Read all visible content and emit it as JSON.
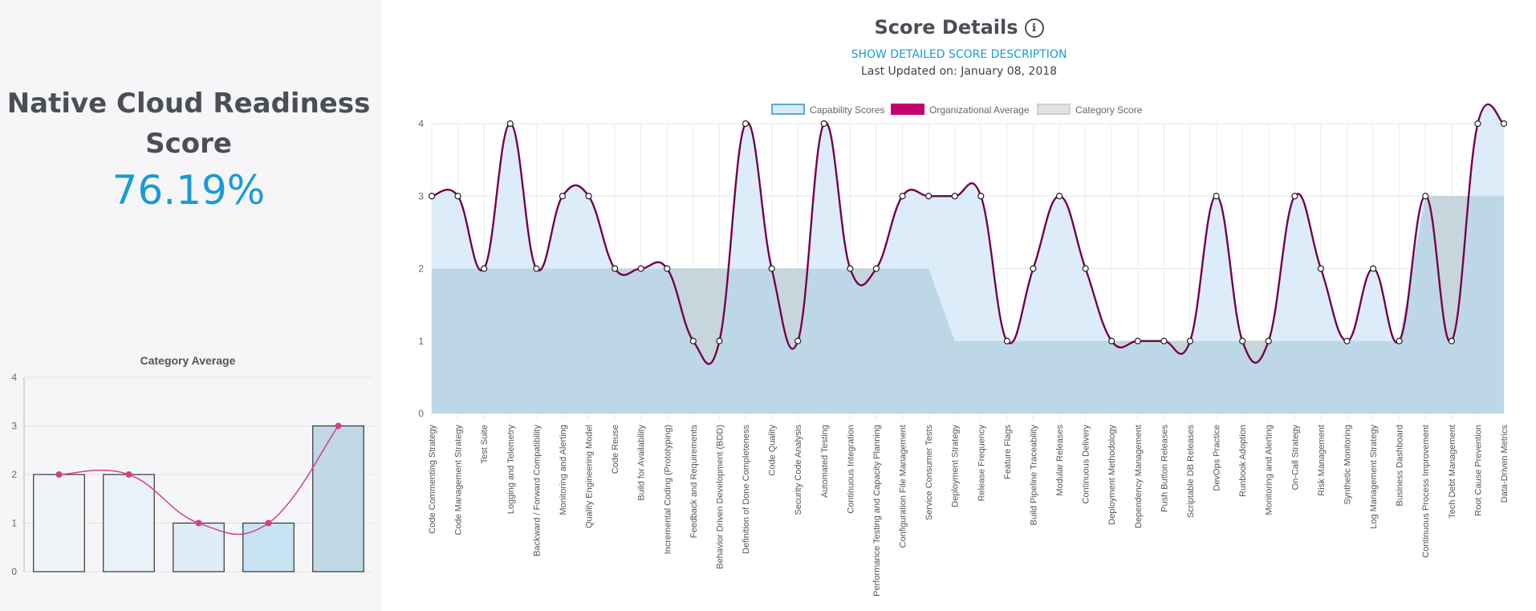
{
  "score_panel": {
    "title": "Native Cloud Readiness Score",
    "value": "76.19%"
  },
  "details": {
    "title": "Score Details",
    "info_icon": "info-icon",
    "link": "SHOW DETAILED SCORE DESCRIPTION",
    "last_updated": "Last Updated on: January 08, 2018"
  },
  "chart_data": [
    {
      "type": "bar",
      "title": "Category Average",
      "categories": [
        "",
        "",
        "",
        "",
        ""
      ],
      "series": [
        {
          "type": "bar",
          "values": [
            2,
            2,
            1,
            1,
            3
          ]
        },
        {
          "type": "line",
          "values": [
            2,
            2,
            1,
            1,
            3
          ]
        }
      ],
      "ylim": [
        0,
        4
      ],
      "yticks": [
        0,
        1,
        2,
        3,
        4
      ],
      "grid": true,
      "colors": {
        "bars": [
          "#f1f5f9",
          "#e9f2f9",
          "#dfedf7",
          "#c8e4f2",
          "#c1d9e7"
        ],
        "line": "#d43f8d"
      }
    },
    {
      "type": "area",
      "legend": [
        "Capability Scores",
        "Organizational Average",
        "Category Score"
      ],
      "legend_position": "top",
      "categories": [
        "Code Commenting Strategy",
        "Code Management Strategy",
        "Test Suite",
        "Logging and Telemetry",
        "Backward / Forward Compatibility",
        "Monitoring and Alerting",
        "Quality Engineering Model",
        "Code Reuse",
        "Build for Availability",
        "Incremental Coding (Prototyping)",
        "Feedback and Requirements",
        "Behavior Driven Development (BDD)",
        "Definition of Done Completeness",
        "Code Quality",
        "Security Code Analysis",
        "Automated Testing",
        "Continuous Integration",
        "Performance Testing and Capacity Planning",
        "Configuration File Management",
        "Service Consumer Tests",
        "Deployment Strategy",
        "Release Frequency",
        "Feature Flags",
        "Build Pipeline Traceability",
        "Modular Releases",
        "Continuous Delivery",
        "Deployment Methodology",
        "Dependency Management",
        "Push Button Releases",
        "Scriptable DB Releases",
        "DevOps Practice",
        "Runbook Adoption",
        "Monitoring and Alerting",
        "On-Call Strategy",
        "Risk Management",
        "Synthetic Monitoring",
        "Log Management Strategy",
        "Business Dashboard",
        "Continuous Process Improvement",
        "Tech Debt Management",
        "Root Cause Prevention",
        "Data-Driven Metrics"
      ],
      "series": [
        {
          "name": "Capability Scores",
          "values": [
            3,
            3,
            2,
            4,
            2,
            3,
            3,
            2,
            2,
            2,
            1,
            1,
            4,
            2,
            1,
            4,
            2,
            2,
            3,
            3,
            3,
            3,
            1,
            2,
            3,
            2,
            1,
            1,
            1,
            1,
            3,
            1,
            1,
            3,
            2,
            1,
            2,
            1,
            3,
            1,
            4,
            4
          ]
        },
        {
          "name": "Organizational Average",
          "values": [
            3,
            3,
            2,
            4,
            2,
            3,
            3,
            2,
            2,
            2,
            1,
            1,
            4,
            2,
            1,
            4,
            2,
            2,
            3,
            3,
            3,
            3,
            1,
            2,
            3,
            2,
            1,
            1,
            1,
            1,
            3,
            1,
            1,
            3,
            2,
            1,
            2,
            1,
            3,
            1,
            4,
            4
          ]
        },
        {
          "name": "Category Score",
          "values": [
            2,
            2,
            2,
            2,
            2,
            2,
            2,
            2,
            2,
            2,
            2,
            2,
            2,
            2,
            2,
            2,
            2,
            2,
            2,
            2,
            1,
            1,
            1,
            1,
            1,
            1,
            1,
            1,
            1,
            1,
            1,
            1,
            1,
            1,
            1,
            1,
            1,
            1,
            3,
            3,
            3,
            3
          ]
        }
      ],
      "ylim": [
        0,
        4
      ],
      "yticks": [
        0,
        1,
        2,
        3,
        4
      ],
      "grid": true,
      "colors": {
        "capability_fill": "#d6eaf8",
        "capability_stroke": "#5aa9dc",
        "average_line": "#c4006f",
        "category_fill": "#e2e2e2",
        "overlap": "#c2d8e5"
      }
    }
  ]
}
